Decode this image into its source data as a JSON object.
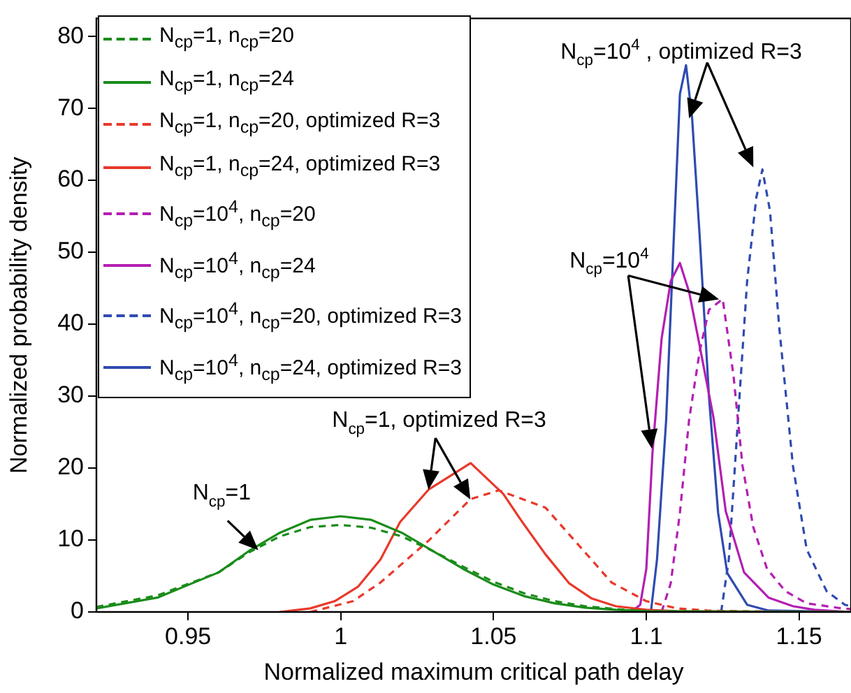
{
  "chart_data": {
    "type": "line",
    "xlabel": "Normalized maximum critical path delay",
    "ylabel": "Normalized probability density",
    "xlim": [
      0.92,
      1.167
    ],
    "ylim": [
      0,
      82.5
    ],
    "xticks": [
      0.95,
      1,
      1.05,
      1.1,
      1.15
    ],
    "yticks": [
      0,
      10,
      20,
      30,
      40,
      50,
      60,
      70,
      80
    ],
    "legend": "top left",
    "marker": "none",
    "series": [
      {
        "name": "N$_{cp}$=1, n$_{cp}$=20",
        "color": "#1a8c1a",
        "line_style": "dashed",
        "x": [
          0.92,
          0.94,
          0.96,
          0.97,
          0.98,
          0.99,
          1.0,
          1.01,
          1.02,
          1.03,
          1.04,
          1.05,
          1.06,
          1.07,
          1.08,
          1.09,
          1.1,
          1.167
        ],
        "values": [
          0.7,
          2.3,
          5.5,
          8.3,
          10.5,
          11.8,
          12.1,
          11.7,
          10.5,
          8.5,
          6.3,
          4.2,
          2.6,
          1.5,
          0.8,
          0.4,
          0.1,
          0
        ]
      },
      {
        "name": "N$_{cp}$=1, n$_{cp}$=24",
        "color": "#1a8c1a",
        "line_style": "solid",
        "x": [
          0.92,
          0.94,
          0.96,
          0.97,
          0.98,
          0.99,
          1.0,
          1.01,
          1.02,
          1.03,
          1.04,
          1.05,
          1.06,
          1.07,
          1.08,
          1.09,
          1.1,
          1.167
        ],
        "values": [
          0.5,
          2,
          5.5,
          8.5,
          11,
          12.8,
          13.3,
          12.8,
          11,
          8.5,
          6,
          3.8,
          2.2,
          1.2,
          0.6,
          0.3,
          0.1,
          0
        ]
      },
      {
        "name": "N$_{cp}$=1, n$_{cp}$=20, optimized R=3",
        "color": "#e8392b",
        "line_style": "dashed",
        "x": [
          0.99,
          1.004,
          1.013,
          1.0287,
          1.0425,
          1.0517,
          1.067,
          1.082,
          1.0886,
          1.1,
          1.11,
          1.12,
          1.13,
          1.167
        ],
        "values": [
          0,
          1.5,
          4.1,
          9.9,
          15.7,
          16.9,
          14.5,
          7.3,
          4.1,
          1.5,
          0.5,
          0.2,
          0.1,
          0
        ]
      },
      {
        "name": "N$_{cp}$=1, n$_{cp}$=24, optimized R=3",
        "color": "#e8392b",
        "line_style": "solid",
        "x": [
          0.98,
          0.99,
          0.998,
          1.0056,
          1.013,
          1.0194,
          1.0287,
          1.0425,
          1.0532,
          1.0594,
          1.067,
          1.0747,
          1.082,
          1.09,
          1.1,
          1.11,
          1.167
        ],
        "values": [
          0,
          0.5,
          1.5,
          3.5,
          7.3,
          12.5,
          17,
          20.7,
          16.4,
          12.5,
          8,
          4,
          1.9,
          0.8,
          0.3,
          0.1,
          0
        ]
      },
      {
        "name": "N$_{cp}$=10$^{4}$, n$_{cp}$=20",
        "color": "#b31fb3",
        "line_style": "dashed",
        "x": [
          1.105,
          1.108,
          1.111,
          1.114,
          1.1175,
          1.1205,
          1.125,
          1.1285,
          1.1315,
          1.135,
          1.1395,
          1.1455,
          1.1525,
          1.164,
          1.167
        ],
        "values": [
          0,
          4,
          13.8,
          26.7,
          36.3,
          42,
          43.5,
          33,
          20.3,
          11.8,
          6,
          2.9,
          1.2,
          0.5,
          0.4
        ]
      },
      {
        "name": "N$_{cp}$=10$^{4}$, n$_{cp}$=24",
        "color": "#b31fb3",
        "line_style": "solid",
        "x": [
          1.095,
          1.098,
          1.1,
          1.102,
          1.105,
          1.108,
          1.111,
          1.114,
          1.117,
          1.122,
          1.126,
          1.132,
          1.14,
          1.148,
          1.155,
          1.167
        ],
        "values": [
          0,
          1,
          6,
          22,
          38,
          46,
          48.5,
          44.5,
          38,
          27,
          14,
          5.5,
          2,
          0.8,
          0.3,
          0
        ]
      },
      {
        "name": "N$_{cp}$=10$^{4}$, n$_{cp}$=20, optimized R=3",
        "color": "#2f4bb0",
        "line_style": "dashed",
        "x": [
          1.1245,
          1.127,
          1.13,
          1.133,
          1.136,
          1.138,
          1.1405,
          1.1435,
          1.148,
          1.1525,
          1.159,
          1.165,
          1.167
        ],
        "values": [
          0,
          7.3,
          26.7,
          46,
          57.6,
          61.5,
          55.7,
          39.6,
          20.3,
          8.7,
          2.9,
          1,
          0.8
        ]
      },
      {
        "name": "N$_{cp}$=10$^{4}$, n$_{cp}$=24, optimized R=3",
        "color": "#2f4bb0",
        "line_style": "solid",
        "x": [
          1.1015,
          1.1035,
          1.1065,
          1.109,
          1.111,
          1.113,
          1.115,
          1.1175,
          1.1205,
          1.1235,
          1.1265,
          1.133,
          1.14,
          1.167
        ],
        "values": [
          0,
          7.3,
          26.7,
          52,
          72,
          76,
          68.6,
          52,
          30,
          13.8,
          5.4,
          1,
          0.2,
          0
        ]
      }
    ],
    "annotations": [
      {
        "text": "N$_{cp}$=1",
        "x": 0.973,
        "y": 8.6
      },
      {
        "text": "N$_{cp}$=1, optimized R=3",
        "x": 1.0287,
        "y": 17
      },
      {
        "text": "N$_{cp}$=10$^{4}$",
        "x": 1.111,
        "y": 48.5
      },
      {
        "text": "N$_{cp}$=10$^{4}$ , optimized R=3",
        "x": 1.114,
        "y": 68.6
      }
    ]
  }
}
